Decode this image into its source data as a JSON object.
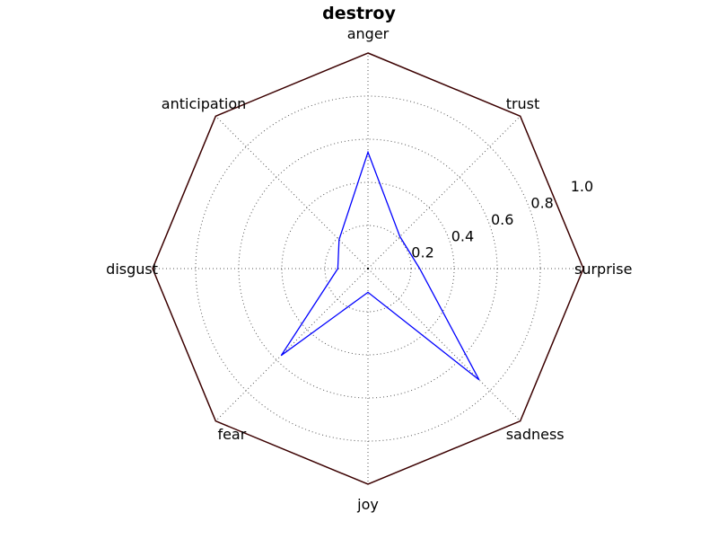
{
  "chart_data": {
    "type": "radar",
    "title": "destroy",
    "axes": [
      "anger",
      "trust",
      "surprise",
      "sadness",
      "joy",
      "fear",
      "disgust",
      "anticipation"
    ],
    "series": [
      {
        "values": [
          0.54,
          0.21,
          0.24,
          0.73,
          0.11,
          0.57,
          0.14,
          0.19
        ],
        "color": "#0000ff"
      }
    ],
    "rlim": [
      0,
      1.0
    ],
    "rings": [
      0.2,
      0.4,
      0.6,
      0.8,
      1.0
    ],
    "ring_labels": [
      "0.2",
      "0.4",
      "0.6",
      "0.8",
      "1.0"
    ],
    "grid": true,
    "frame_color": "#3b0000",
    "grid_color": "#555555"
  }
}
